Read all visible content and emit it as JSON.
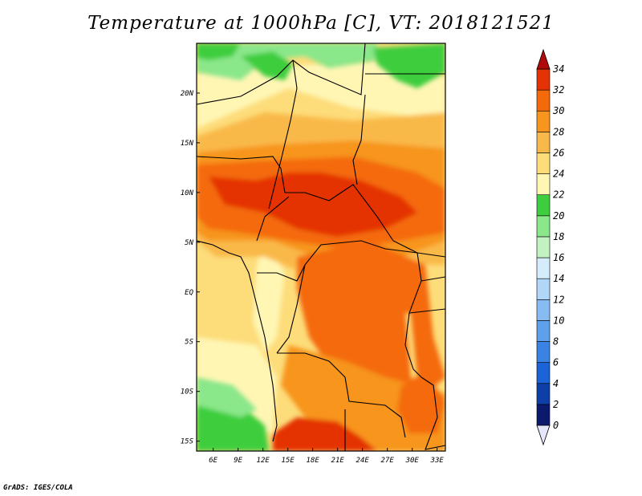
{
  "title": "Temperature at 1000hPa [C], VT: 2018121521",
  "credit": "GrADS: IGES/COLA",
  "map": {
    "lon_range": [
      4,
      34
    ],
    "lat_range": [
      -16,
      25
    ],
    "lon_ticks": [
      {
        "value": 6,
        "label": "6E"
      },
      {
        "value": 9,
        "label": "9E"
      },
      {
        "value": 12,
        "label": "12E"
      },
      {
        "value": 15,
        "label": "15E"
      },
      {
        "value": 18,
        "label": "18E"
      },
      {
        "value": 21,
        "label": "21E"
      },
      {
        "value": 24,
        "label": "24E"
      },
      {
        "value": 27,
        "label": "27E"
      },
      {
        "value": 30,
        "label": "30E"
      },
      {
        "value": 33,
        "label": "33E"
      }
    ],
    "lat_ticks": [
      {
        "value": 20,
        "label": "20N"
      },
      {
        "value": 15,
        "label": "15N"
      },
      {
        "value": 10,
        "label": "10N"
      },
      {
        "value": 5,
        "label": "5N"
      },
      {
        "value": 0,
        "label": "EQ"
      },
      {
        "value": -5,
        "label": "5S"
      },
      {
        "value": -10,
        "label": "10S"
      },
      {
        "value": -15,
        "label": "15S"
      }
    ]
  },
  "colorbar": {
    "levels": [
      0,
      2,
      4,
      6,
      8,
      10,
      12,
      14,
      16,
      18,
      20,
      22,
      24,
      26,
      28,
      30,
      32,
      34
    ],
    "labels": [
      "0",
      "2",
      "4",
      "6",
      "8",
      "10",
      "12",
      "14",
      "16",
      "18",
      "20",
      "22",
      "24",
      "26",
      "28",
      "30",
      "32",
      "34"
    ],
    "colors": [
      "#0c1a6e",
      "#0e3fa8",
      "#1b63d6",
      "#3a82e4",
      "#5ea0ec",
      "#86bcf2",
      "#b0d6f8",
      "#d4ecfb",
      "#c2f2c2",
      "#8ae78a",
      "#3ecd3e",
      "#fff6b4",
      "#fddc7a",
      "#f9b94a",
      "#f7951e",
      "#f46a0a",
      "#e43206",
      "#c41006"
    ],
    "under_color": "#e6e6fa",
    "over_color": "#b00a0a"
  }
}
